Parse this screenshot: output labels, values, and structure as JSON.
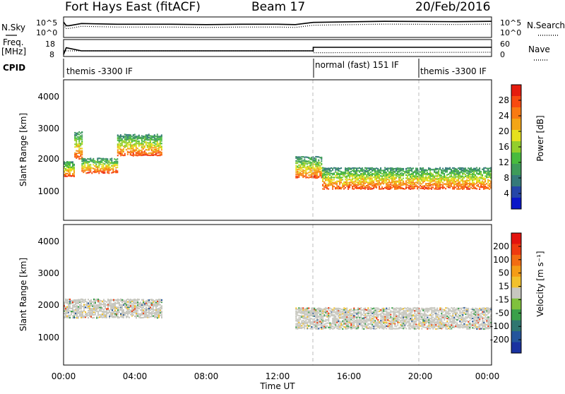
{
  "header": {
    "station": "Fort Hays East (fitACF)",
    "beam": "Beam 17",
    "date": "20/Feb/2016"
  },
  "noise_panel": {
    "left_label": "N.Sky",
    "right_label": "N.Search",
    "left_ticks": [
      "10^5",
      "10^0"
    ],
    "right_ticks": [
      "10^5",
      "10^0"
    ]
  },
  "freq_panel": {
    "left_label_1": "Freq.",
    "left_label_2": "[MHz]",
    "left_ticks": [
      "18",
      "8"
    ],
    "right_label": "Nave",
    "right_ticks": [
      "60",
      "0"
    ]
  },
  "cpid_panel": {
    "label": "CPID",
    "modes": [
      {
        "name": "themis -3300 IF",
        "start_hour": 0,
        "end_hour": 14
      },
      {
        "name": "normal (fast) 151 IF",
        "start_hour": 14,
        "end_hour": 20
      },
      {
        "name": "themis -3300 IF",
        "start_hour": 20,
        "end_hour": 24
      }
    ]
  },
  "time_axis": {
    "title": "Time UT",
    "ticks": [
      "00:00",
      "04:00",
      "08:00",
      "12:00",
      "16:00",
      "20:00",
      "00:00"
    ]
  },
  "power_panel": {
    "ylabel": "Slant Range [km]",
    "yticks": [
      "1000",
      "2000",
      "3000",
      "4000"
    ],
    "colorbar_title": "Power [dB]",
    "colorbar_ticks": [
      "28",
      "24",
      "20",
      "16",
      "12",
      "8",
      "4"
    ],
    "colors": [
      "#0a16c8",
      "#2546a8",
      "#357a7a",
      "#3e9b5a",
      "#48bb3e",
      "#93cf2c",
      "#e6e01e",
      "#f3a516",
      "#f97a12",
      "#f84a10",
      "#e51c0e"
    ]
  },
  "velocity_panel": {
    "ylabel": "Slant Range [km]",
    "yticks": [
      "1000",
      "2000",
      "3000",
      "4000"
    ],
    "colorbar_title": "Velocity [m s⁻¹]",
    "colorbar_ticks": [
      "200",
      "100",
      "50",
      "15",
      "-15",
      "-50",
      "-100",
      "-200"
    ],
    "colors": [
      "#1a32a0",
      "#24559c",
      "#2f7670",
      "#3aa04a",
      "#7fc13c",
      "#c7c7bf",
      "#f2c12c",
      "#f59c16",
      "#f36c12",
      "#ef3a10",
      "#e3130e"
    ]
  },
  "chart_data": {
    "type": "heatmap",
    "x_unit": "hours UT",
    "x_range": [
      0,
      24
    ],
    "range_unit": "km",
    "y_range": [
      180,
      4600
    ],
    "noise_level_log10": [
      [
        0,
        4.0
      ],
      [
        0.15,
        3.0
      ],
      [
        0.3,
        3.0
      ],
      [
        1.0,
        3.6
      ],
      [
        3.0,
        3.4
      ],
      [
        6.0,
        3.4
      ],
      [
        8.0,
        3.3
      ],
      [
        10.0,
        3.4
      ],
      [
        12.0,
        3.4
      ],
      [
        13.0,
        3.3
      ],
      [
        14.0,
        3.9
      ],
      [
        18.0,
        4.2
      ],
      [
        22.0,
        4.1
      ],
      [
        24.0,
        4.2
      ]
    ],
    "frequency_mhz": [
      [
        0,
        8.4
      ],
      [
        0.15,
        13.2
      ],
      [
        1.0,
        11.0
      ],
      [
        14.0,
        11.0
      ],
      [
        14.0,
        13.5
      ],
      [
        24.0,
        13.5
      ]
    ],
    "nave": [
      [
        0,
        18
      ],
      [
        14.0,
        18
      ],
      [
        14.0,
        10
      ],
      [
        24.0,
        12
      ]
    ],
    "power_scatter": [
      {
        "t_start": 0.0,
        "t_end": 0.6,
        "r_center": 1850,
        "r_thickness": 500,
        "db": 22
      },
      {
        "t_start": 0.6,
        "t_end": 1.0,
        "r_center": 2600,
        "r_thickness": 900,
        "db": 22
      },
      {
        "t_start": 1.0,
        "t_end": 3.0,
        "r_center": 1950,
        "r_thickness": 500,
        "db": 22
      },
      {
        "t_start": 3.0,
        "t_end": 5.5,
        "r_center": 2600,
        "r_thickness": 700,
        "db": 18
      },
      {
        "t_start": 13.0,
        "t_end": 14.5,
        "r_center": 1900,
        "r_thickness": 700,
        "db": 22
      },
      {
        "t_start": 14.5,
        "t_end": 24.0,
        "r_center": 1550,
        "r_thickness": 700,
        "db": 24
      }
    ],
    "velocity_scatter": [
      {
        "t_start": 0.0,
        "t_end": 5.5,
        "r_center": 2000,
        "r_thickness": 600,
        "velocity": 0
      },
      {
        "t_start": 13.0,
        "t_end": 24.0,
        "r_center": 1700,
        "r_thickness": 700,
        "velocity": 0
      }
    ]
  }
}
